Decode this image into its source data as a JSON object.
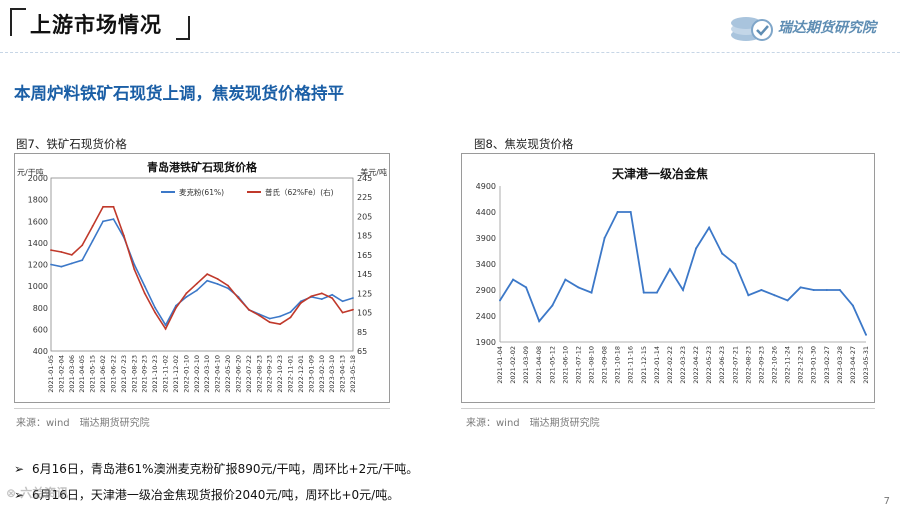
{
  "header": {
    "section_title": "上游市场情况",
    "logo_text": "瑞达期货研究院",
    "logo_icon": "coin-stack-icon"
  },
  "headline": "本周炉料铁矿石现货上调，焦炭现货价格持平",
  "figure7": {
    "caption": "图7、铁矿石现货价格",
    "source": "来源：wind　瑞达期货研究院"
  },
  "figure8": {
    "caption": "图8、焦炭现货价格",
    "source": "来源：wind　瑞达期货研究院"
  },
  "bullets": [
    "6月16日，青岛港61%澳洲麦克粉矿报890元/干吨，周环比+2元/干吨。",
    "6月16日，天津港一级冶金焦现货报价2040元/吨，周环比+0元/吨。"
  ],
  "watermark": "六益资讯",
  "page_number": "7",
  "chart_data": [
    {
      "type": "line",
      "title": "青岛港铁矿石现货价格",
      "ylabel_left": "元/干吨",
      "ylabel_right": "美元/吨",
      "ylim_left": [
        400,
        2000
      ],
      "ylim_right": [
        65,
        245
      ],
      "yticks_left": [
        400,
        600,
        800,
        1000,
        1200,
        1400,
        1600,
        1800,
        2000
      ],
      "yticks_right": [
        65,
        85,
        105,
        125,
        145,
        165,
        185,
        205,
        225,
        245
      ],
      "categories": [
        "2021-01-05",
        "2021-02-04",
        "2021-03-06",
        "2021-04-05",
        "2021-05-15",
        "2021-06-02",
        "2021-06-22",
        "2021-07-23",
        "2021-08-23",
        "2021-09-23",
        "2021-10-23",
        "2021-11-02",
        "2021-12-02",
        "2022-01-10",
        "2022-02-10",
        "2022-03-10",
        "2022-04-10",
        "2022-05-20",
        "2022-06-20",
        "2022-07-22",
        "2022-08-23",
        "2022-09-23",
        "2022-10-23",
        "2022-11-01",
        "2022-12-01",
        "2023-01-09",
        "2023-02-10",
        "2023-03-10",
        "2023-04-13",
        "2023-05-18"
      ],
      "legend_position": "top",
      "series": [
        {
          "name": "麦克粉(61%)",
          "axis": "left",
          "color": "#3c78c8",
          "values": [
            1200,
            1180,
            1210,
            1240,
            1420,
            1600,
            1620,
            1450,
            1200,
            1000,
            800,
            640,
            820,
            900,
            960,
            1050,
            1020,
            980,
            900,
            780,
            740,
            700,
            720,
            760,
            860,
            900,
            880,
            920,
            860,
            890
          ]
        },
        {
          "name": "普氏（62%Fe）(右)",
          "axis": "right",
          "color": "#c0392b",
          "values": [
            170,
            168,
            165,
            175,
            195,
            215,
            215,
            185,
            150,
            125,
            105,
            88,
            110,
            125,
            135,
            145,
            140,
            133,
            120,
            108,
            102,
            95,
            93,
            100,
            115,
            122,
            125,
            120,
            105,
            108
          ]
        }
      ]
    },
    {
      "type": "line",
      "title": "天津港一级冶金焦",
      "ylim": [
        1900,
        4900
      ],
      "yticks": [
        1900,
        2400,
        2900,
        3400,
        3900,
        4400,
        4900
      ],
      "categories": [
        "2021-01-04",
        "2021-02-02",
        "2021-03-09",
        "2021-04-08",
        "2021-05-12",
        "2021-06-10",
        "2021-07-12",
        "2021-08-10",
        "2021-09-08",
        "2021-10-18",
        "2021-11-16",
        "2021-12-15",
        "2022-01-14",
        "2022-02-22",
        "2022-03-23",
        "2022-04-22",
        "2022-05-23",
        "2022-06-23",
        "2022-07-21",
        "2022-08-23",
        "2022-09-23",
        "2022-10-26",
        "2022-11-24",
        "2022-12-23",
        "2023-01-30",
        "2023-02-27",
        "2023-03-28",
        "2023-04-27",
        "2023-05-31"
      ],
      "series": [
        {
          "name": "天津港一级冶金焦",
          "color": "#3c78c8",
          "values": [
            2700,
            3100,
            2950,
            2300,
            2600,
            3100,
            2950,
            2850,
            3900,
            4400,
            4400,
            2850,
            2850,
            3300,
            2900,
            3700,
            4100,
            3600,
            3400,
            2800,
            2900,
            2800,
            2700,
            2950,
            2900,
            2900,
            2900,
            2600,
            2040
          ]
        }
      ]
    }
  ]
}
